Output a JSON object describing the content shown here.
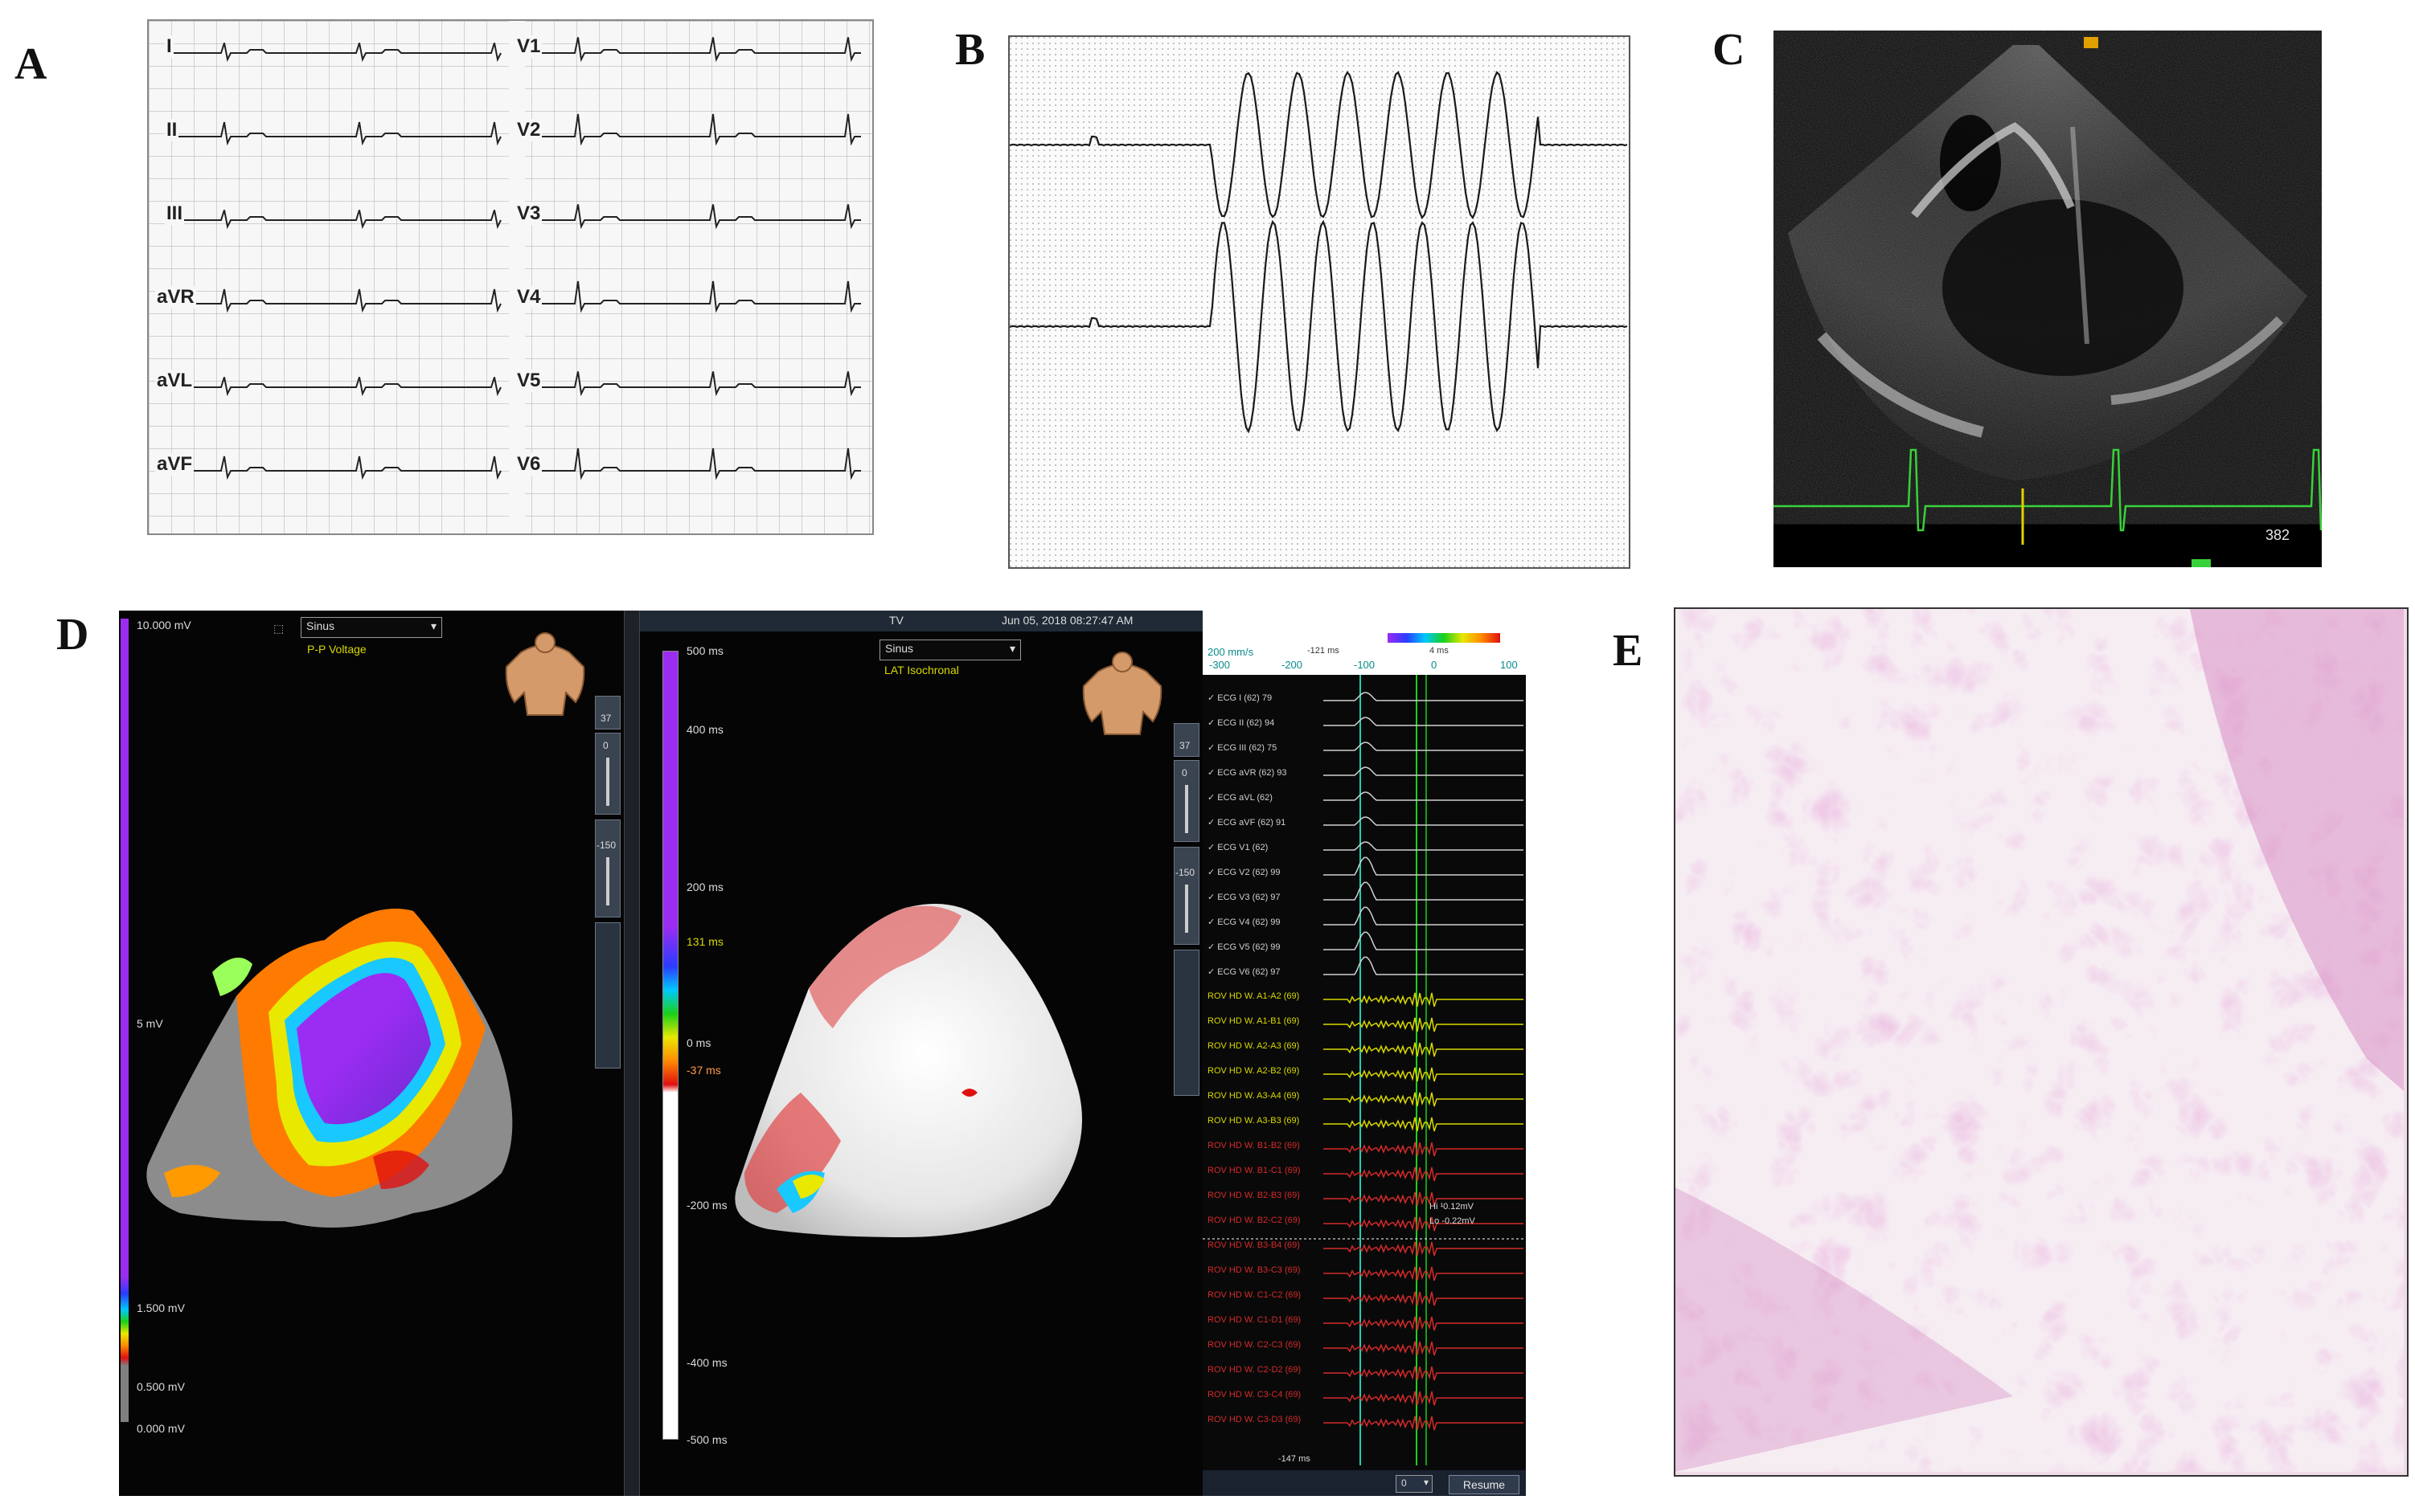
{
  "panels": {
    "a": {
      "letter": "A",
      "leads_left": [
        "I",
        "II",
        "III",
        "aVR",
        "aVL",
        "aVF"
      ],
      "leads_right": [
        "V1",
        "V2",
        "V3",
        "V4",
        "V5",
        "V6"
      ]
    },
    "b": {
      "letter": "B"
    },
    "c": {
      "letter": "C",
      "readout": "382"
    },
    "d": {
      "letter": "D",
      "left": {
        "mode_select": "Sinus",
        "map_type": "P-P Voltage",
        "scale_labels": [
          "10.000 mV",
          "5 mV",
          "1.500 mV",
          "0.500 mV",
          "0.000 mV"
        ],
        "tool_values": [
          "37",
          "0",
          "-150"
        ]
      },
      "right": {
        "title": "TV",
        "datetime": "Jun 05, 2018 08:27:47 AM",
        "mode_select": "Sinus",
        "map_type": "LAT Isochronal",
        "scale_labels": [
          "500 ms",
          "400 ms",
          "200 ms",
          "131 ms",
          "0 ms",
          "-37 ms",
          "-200 ms",
          "-400 ms",
          "-500 ms"
        ],
        "tool_values": [
          "37",
          "0",
          "-150"
        ]
      },
      "signals": {
        "sweep_speed": "200 mm/s",
        "timeline_ticks": [
          "-300",
          "-200",
          "-100",
          "0",
          "100"
        ],
        "marker_left": "-121 ms",
        "marker_right": "4 ms",
        "ecg_channels": [
          {
            "label": "ECG I (62)",
            "val": "79"
          },
          {
            "label": "ECG II (62)",
            "val": "94"
          },
          {
            "label": "ECG III (62)",
            "val": "75"
          },
          {
            "label": "ECG aVR (62)",
            "val": "93"
          },
          {
            "label": "ECG aVL (62)",
            "val": ""
          },
          {
            "label": "ECG aVF (62)",
            "val": "91"
          },
          {
            "label": "ECG V1 (62)",
            "val": ""
          },
          {
            "label": "ECG V2 (62)",
            "val": "99"
          },
          {
            "label": "ECG V3 (62)",
            "val": "97"
          },
          {
            "label": "ECG V4 (62)",
            "val": "99"
          },
          {
            "label": "ECG V5 (62)",
            "val": "99"
          },
          {
            "label": "ECG V6 (62)",
            "val": "97"
          }
        ],
        "yellow_channels": [
          "ROV HD W. A1-A2 (69)",
          "ROV HD W. A1-B1 (69)",
          "ROV HD W. A2-A3 (69)",
          "ROV HD W. A2-B2 (69)",
          "ROV HD W. A3-A4 (69)",
          "ROV HD W. A3-B3 (69)"
        ],
        "red_channels": [
          "ROV HD W. B1-B2 (69)",
          "ROV HD W. B1-C1 (69)",
          "ROV HD W. B2-B3 (69)",
          "ROV HD W. B2-C2 (69)",
          "ROV HD W. B3-B4 (69)",
          "ROV HD W. B3-C3 (69)",
          "ROV HD W. C1-C2 (69)",
          "ROV HD W. C1-D1 (69)",
          "ROV HD W. C2-C3 (69)",
          "ROV HD W. C2-D2 (69)",
          "ROV HD W. C3-C4 (69)",
          "ROV HD W. C3-D3 (69)"
        ],
        "hi_readout": "Hi ¹0.12mV",
        "lo_readout": "Lo -0.22mV",
        "bottom_marker": "-147 ms",
        "gain_select": "0",
        "resume_label": "Resume"
      }
    },
    "e": {
      "letter": "E"
    }
  },
  "colors": {
    "ecg_grid": "#b9b9b9",
    "echo_trace": "#39d139",
    "voltage_purple": "#9b2cf2",
    "isochronal_red": "#e03a3a",
    "histology_pink": "#d88fc4"
  }
}
